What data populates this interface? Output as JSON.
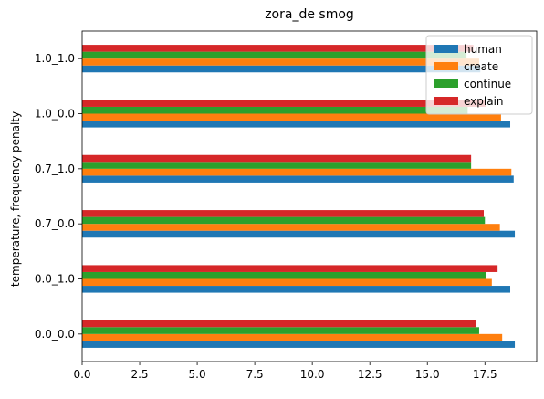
{
  "chart_data": {
    "type": "bar",
    "orientation": "horizontal",
    "title": "zora_de smog",
    "xlabel": "",
    "ylabel": "temperature, frequency penalty",
    "categories": [
      "0.0_0.0",
      "0.0_1.0",
      "0.7_0.0",
      "0.7_1.0",
      "1.0_0.0",
      "1.0_1.0"
    ],
    "xlim": [
      0,
      19.75
    ],
    "xticks": [
      0,
      2.5,
      5,
      7.5,
      10,
      12.5,
      15,
      17.5
    ],
    "xtick_labels": [
      "0.0",
      "2.5",
      "5.0",
      "7.5",
      "10.0",
      "12.5",
      "15.0",
      "17.5"
    ],
    "grid": false,
    "legend_position": "top-right",
    "series": [
      {
        "name": "human",
        "color": "#1f77b4",
        "values": [
          18.8,
          18.6,
          18.8,
          18.75,
          18.6,
          17.3
        ]
      },
      {
        "name": "create",
        "color": "#ff7f0e",
        "values": [
          18.25,
          17.8,
          18.15,
          18.65,
          18.2,
          17.25
        ]
      },
      {
        "name": "continue",
        "color": "#2ca02c",
        "values": [
          17.25,
          17.55,
          17.5,
          16.9,
          16.75,
          16.7
        ]
      },
      {
        "name": "explain",
        "color": "#d62728",
        "values": [
          17.1,
          18.05,
          17.45,
          16.9,
          17.55,
          17.0
        ]
      }
    ]
  }
}
